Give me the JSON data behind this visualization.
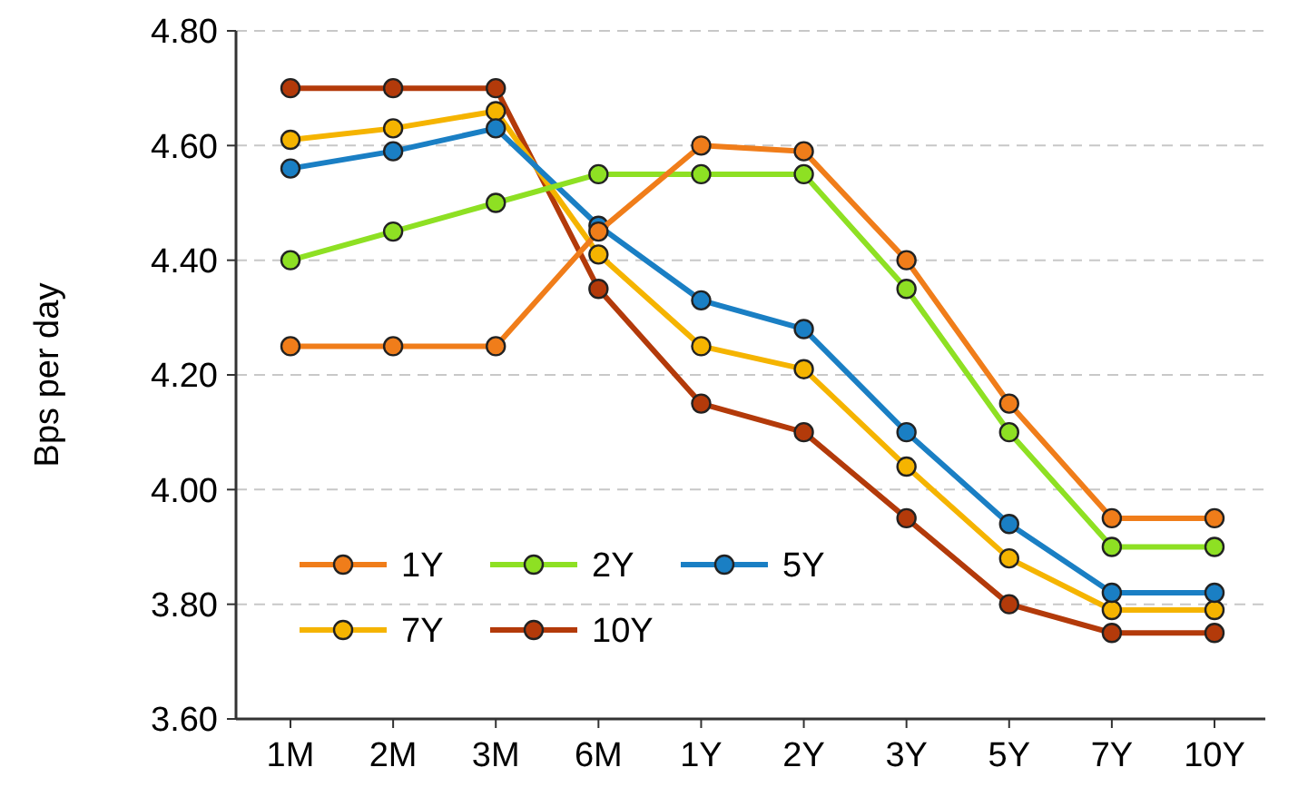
{
  "chart_data": {
    "type": "line",
    "ylabel": "Bps per day",
    "categories": [
      "1M",
      "2M",
      "3M",
      "6M",
      "1Y",
      "2Y",
      "3Y",
      "5Y",
      "7Y",
      "10Y"
    ],
    "series": [
      {
        "name": "1Y",
        "color": "#f07d1a",
        "values": [
          4.25,
          4.25,
          4.25,
          4.45,
          4.6,
          4.59,
          4.4,
          4.15,
          3.95,
          3.95
        ]
      },
      {
        "name": "2Y",
        "color": "#8ee023",
        "values": [
          4.4,
          4.45,
          4.5,
          4.55,
          4.55,
          4.55,
          4.35,
          4.1,
          3.9,
          3.9
        ]
      },
      {
        "name": "5Y",
        "color": "#1a7fc4",
        "values": [
          4.56,
          4.59,
          4.63,
          4.46,
          4.33,
          4.28,
          4.1,
          3.94,
          3.82,
          3.82
        ]
      },
      {
        "name": "7Y",
        "color": "#f5b400",
        "values": [
          4.61,
          4.63,
          4.66,
          4.41,
          4.25,
          4.21,
          4.04,
          3.88,
          3.79,
          3.79
        ]
      },
      {
        "name": "10Y",
        "color": "#b33a0a",
        "values": [
          4.7,
          4.7,
          4.7,
          4.35,
          4.15,
          4.1,
          3.95,
          3.8,
          3.75,
          3.75
        ]
      }
    ],
    "ylim": [
      3.6,
      4.8
    ],
    "yticks": [
      {
        "value": 3.6,
        "label": "3.60"
      },
      {
        "value": 3.8,
        "label": "3.80"
      },
      {
        "value": 4.0,
        "label": "4.00"
      },
      {
        "value": 4.2,
        "label": "4.20"
      },
      {
        "value": 4.4,
        "label": "4.40"
      },
      {
        "value": 4.6,
        "label": "4.60"
      },
      {
        "value": 4.8,
        "label": "4.80"
      }
    ],
    "grid": "y",
    "legend": "bottom left",
    "marker": "circle",
    "line_style": "solid"
  }
}
